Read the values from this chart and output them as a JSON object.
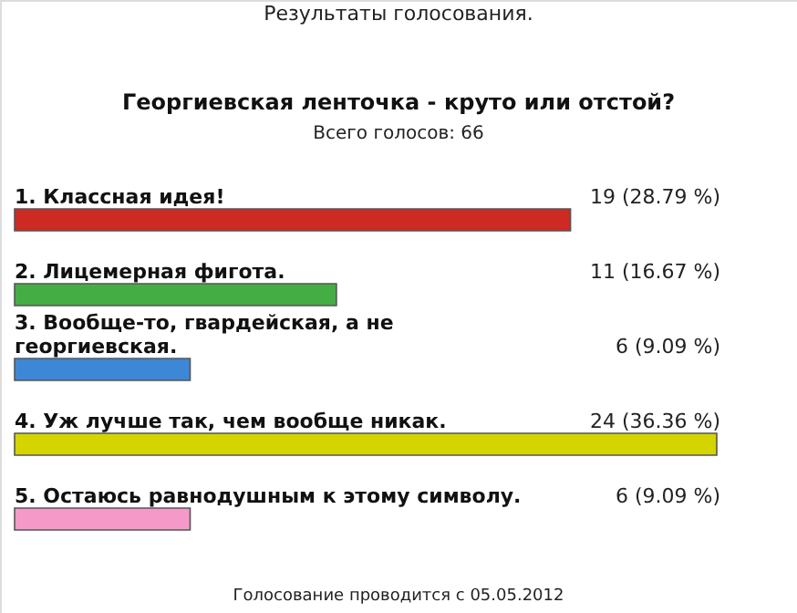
{
  "chart_data": {
    "type": "bar",
    "orientation": "horizontal",
    "title": "Георгиевская ленточка - круто или отстой?",
    "subtitle": "Всего голосов: 66",
    "categories": [
      "1. Классная идея!",
      "2. Лицемерная фигота.",
      "3. Вообще-то, гвардейская, а не георгиевская.",
      "4. Уж лучше так, чем вообще никак.",
      "5. Остаюсь равнодушным к этому символу."
    ],
    "values": [
      19,
      11,
      6,
      24,
      6
    ],
    "colors": [
      "#cc2a22",
      "#44ae44",
      "#3d88d6",
      "#d4d400",
      "#f59ac8"
    ],
    "value_labels": [
      "19 (28.79 %)",
      "11 (16.67 %)",
      "6 (9.09 %)",
      "24 (36.36 %)",
      "6 (9.09 %)"
    ],
    "annotations": [
      "Результаты голосования.",
      "Голосование проводится с 05.05.2012"
    ]
  }
}
